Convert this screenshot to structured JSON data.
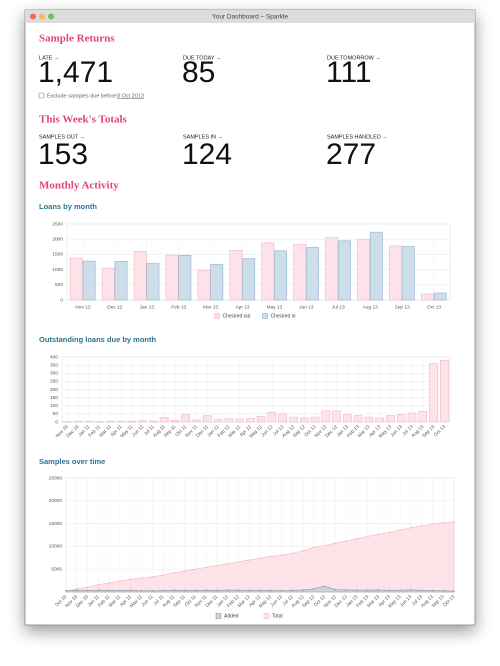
{
  "window": {
    "title": "Your Dashboard – Sparkle"
  },
  "sections": [
    {
      "heading": "Sample Returns",
      "stats": [
        {
          "label": "LATE →",
          "value": "1,471"
        },
        {
          "label": "DUE TODAY →",
          "value": "85"
        },
        {
          "label": "DUE TOMORROW →",
          "value": "111"
        }
      ],
      "option": {
        "text": "Exclude samples due before",
        "date": "8 Oct 2013"
      }
    },
    {
      "heading": "This Week's Totals",
      "stats": [
        {
          "label": "SAMPLES OUT →",
          "value": "153"
        },
        {
          "label": "SAMPLES IN →",
          "value": "124"
        },
        {
          "label": "SAMPLES HANDLED →",
          "value": "277"
        }
      ]
    },
    {
      "heading": "Monthly Activity"
    }
  ],
  "chart_data": [
    {
      "type": "bar",
      "title": "Loans by month",
      "categories": [
        "Nov 12",
        "Dec 12",
        "Jan 13",
        "Feb 13",
        "Mar 13",
        "Apr 13",
        "May 13",
        "Jun 13",
        "Jul 13",
        "Aug 13",
        "Sep 13",
        "Oct 13"
      ],
      "series": [
        {
          "name": "Checked out",
          "color": "#fde3e8",
          "stroke": "#f2b8c4",
          "values": [
            1380,
            1050,
            1600,
            1480,
            980,
            1630,
            1880,
            1830,
            2050,
            2000,
            1780,
            200
          ]
        },
        {
          "name": "Checked in",
          "color": "#cddde9",
          "stroke": "#93b4cb",
          "values": [
            1280,
            1270,
            1200,
            1470,
            1170,
            1360,
            1620,
            1730,
            1950,
            2230,
            1760,
            230
          ]
        }
      ],
      "ylim": [
        0,
        2500
      ],
      "yticks": [
        0,
        500,
        1000,
        1500,
        2000,
        2500
      ],
      "grid": true,
      "legend": "bottom"
    },
    {
      "type": "bar",
      "title": "Outstanding loans due by month",
      "categories": [
        "Nov 10",
        "Dec 10",
        "Jan 11",
        "Feb 11",
        "Mar 11",
        "Apr 11",
        "May 11",
        "Jun 11",
        "Jul 11",
        "Aug 11",
        "Sep 11",
        "Oct 11",
        "Nov 11",
        "Dec 11",
        "Jan 12",
        "Feb 12",
        "Mar 12",
        "Apr 12",
        "May 12",
        "Jun 12",
        "Jul 12",
        "Aug 12",
        "Sep 12",
        "Oct 12",
        "Nov 12",
        "Dec 12",
        "Jan 13",
        "Feb 13",
        "Mar 13",
        "Apr 13",
        "May 13",
        "Jun 13",
        "Jul 13",
        "Aug 13",
        "Sep 13",
        "Oct 13"
      ],
      "color": "#fde3e8",
      "stroke": "#f2b8c4",
      "values": [
        3,
        5,
        4,
        3,
        6,
        4,
        5,
        8,
        6,
        28,
        10,
        45,
        12,
        40,
        15,
        20,
        18,
        22,
        35,
        60,
        50,
        30,
        25,
        30,
        70,
        68,
        45,
        40,
        30,
        25,
        40,
        45,
        55,
        65,
        360,
        380
      ],
      "ylim": [
        0,
        400
      ],
      "yticks": [
        0,
        50,
        100,
        150,
        200,
        250,
        300,
        350,
        400
      ],
      "grid": true
    },
    {
      "type": "area",
      "title": "Samples over time",
      "categories": [
        "Oct 10",
        "Nov 10",
        "Dec 10",
        "Jan 11",
        "Feb 11",
        "Mar 11",
        "Apr 11",
        "May 11",
        "Jun 11",
        "Jul 11",
        "Aug 11",
        "Sep 11",
        "Oct 11",
        "Nov 11",
        "Dec 11",
        "Jan 12",
        "Feb 12",
        "Mar 12",
        "Apr 12",
        "May 12",
        "Jun 12",
        "Jul 12",
        "Aug 12",
        "Sep 12",
        "Oct 12",
        "Nov 12",
        "Dec 12",
        "Jan 13",
        "Feb 13",
        "Mar 13",
        "Apr 13",
        "May 13",
        "Jun 13",
        "Jul 13",
        "Aug 13",
        "Sep 13",
        "Oct 13"
      ],
      "series": [
        {
          "name": "Added",
          "color": "#c9d3dc",
          "stroke": "#8d9daa",
          "values": [
            300,
            400,
            350,
            400,
            380,
            350,
            400,
            300,
            250,
            350,
            400,
            380,
            350,
            400,
            380,
            420,
            400,
            380,
            400,
            350,
            300,
            380,
            450,
            700,
            1300,
            500,
            450,
            420,
            400,
            450,
            380,
            400,
            450,
            380,
            350,
            300,
            200
          ]
        },
        {
          "name": "Total",
          "color": "#fde3e8",
          "stroke": "#f2b8c4",
          "values": [
            300,
            700,
            1100,
            1600,
            2000,
            2400,
            2800,
            3100,
            3300,
            3700,
            4200,
            4600,
            5000,
            5400,
            5800,
            6200,
            6600,
            7000,
            7400,
            7800,
            8100,
            8500,
            9000,
            9800,
            10200,
            10700,
            11200,
            11700,
            12200,
            12700,
            13100,
            13600,
            14100,
            14500,
            14900,
            15200,
            15400
          ]
        }
      ],
      "ylim": [
        0,
        25000
      ],
      "yticks": [
        5000,
        10000,
        15000,
        20000,
        25000
      ],
      "grid": true,
      "legend": "bottom"
    }
  ]
}
